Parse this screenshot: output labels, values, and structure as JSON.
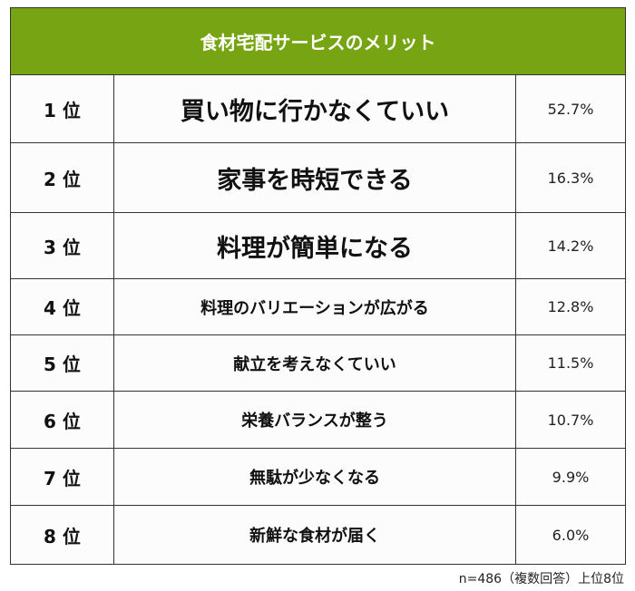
{
  "title": "食材宅配サービスのメリット",
  "header_color": "#76a413",
  "rows": [
    {
      "rank": "1 位",
      "item": "買い物に行かなくていい",
      "percent": "52.7%"
    },
    {
      "rank": "2 位",
      "item": "家事を時短できる",
      "percent": "16.3%"
    },
    {
      "rank": "3 位",
      "item": "料理が簡単になる",
      "percent": "14.2%"
    },
    {
      "rank": "4 位",
      "item": "料理のバリエーションが広がる",
      "percent": "12.8%"
    },
    {
      "rank": "5 位",
      "item": "献立を考えなくていい",
      "percent": "11.5%"
    },
    {
      "rank": "6 位",
      "item": "栄養バランスが整う",
      "percent": "10.7%"
    },
    {
      "rank": "7 位",
      "item": "無駄が少なくなる",
      "percent": "9.9%"
    },
    {
      "rank": "8 位",
      "item": "新鮮な食材が届く",
      "percent": "6.0%"
    }
  ],
  "footnote": "n=486（複数回答）上位8位"
}
